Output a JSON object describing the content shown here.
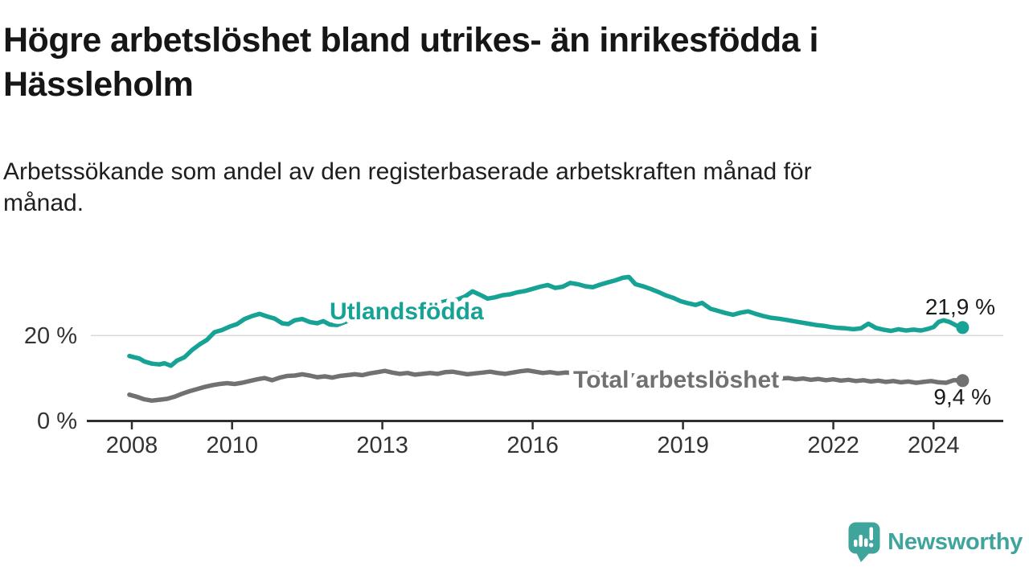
{
  "header": {
    "title_lines": [
      "Högre arbetslöshet bland utrikes- än inrikesfödda i",
      "Hässleholm"
    ],
    "subtitle_lines": [
      "Arbetssökande som andel av den registerbaserade arbetskraften månad för",
      "månad."
    ]
  },
  "chart_data": {
    "type": "line",
    "title": "Högre arbetslöshet bland utrikes- än inrikesfödda i Hässleholm",
    "subtitle": "Arbetssökande som andel av den registerbaserade arbetskraften månad för månad.",
    "unit": "%",
    "grid": "horizontal line at 20% only",
    "legend_position": "inline labels on lines, end value labels at right",
    "x_axis": {
      "range": [
        2007.9,
        2025.3
      ],
      "ticks": [
        {
          "value": 2008,
          "label": "2008"
        },
        {
          "value": 2010,
          "label": "2010"
        },
        {
          "value": 2013,
          "label": "2013"
        },
        {
          "value": 2016,
          "label": "2016"
        },
        {
          "value": 2019,
          "label": "2019"
        },
        {
          "value": 2022,
          "label": "2022"
        },
        {
          "value": 2024,
          "label": "2024"
        }
      ]
    },
    "y_axis": {
      "range": [
        0,
        36
      ],
      "ticks": [
        {
          "value": 0,
          "label": "0 %"
        },
        {
          "value": 20,
          "label": "20 %"
        }
      ]
    },
    "series": [
      {
        "name": "Utlandsfödda",
        "color": "#16a294",
        "end_value": 21.9,
        "end_label": "21,9 %",
        "points": [
          [
            2007.95,
            15.2
          ],
          [
            2008.05,
            14.9
          ],
          [
            2008.15,
            14.6
          ],
          [
            2008.25,
            13.9
          ],
          [
            2008.4,
            13.4
          ],
          [
            2008.55,
            13.2
          ],
          [
            2008.65,
            13.5
          ],
          [
            2008.78,
            12.9
          ],
          [
            2008.9,
            14.1
          ],
          [
            2009.05,
            14.9
          ],
          [
            2009.2,
            16.6
          ],
          [
            2009.35,
            17.9
          ],
          [
            2009.5,
            19.0
          ],
          [
            2009.65,
            20.8
          ],
          [
            2009.8,
            21.3
          ],
          [
            2009.95,
            22.1
          ],
          [
            2010.1,
            22.7
          ],
          [
            2010.25,
            23.9
          ],
          [
            2010.4,
            24.6
          ],
          [
            2010.55,
            25.1
          ],
          [
            2010.7,
            24.5
          ],
          [
            2010.85,
            24.0
          ],
          [
            2011.0,
            22.9
          ],
          [
            2011.12,
            22.7
          ],
          [
            2011.25,
            23.6
          ],
          [
            2011.4,
            23.9
          ],
          [
            2011.55,
            23.2
          ],
          [
            2011.7,
            22.9
          ],
          [
            2011.82,
            23.4
          ],
          [
            2011.95,
            22.6
          ],
          [
            2012.1,
            22.5
          ],
          [
            2012.25,
            23.2
          ],
          [
            2012.4,
            23.8
          ],
          [
            2012.55,
            24.1
          ],
          [
            2012.7,
            23.8
          ],
          [
            2012.85,
            24.0
          ],
          [
            2013.0,
            24.5
          ],
          [
            2013.15,
            25.3
          ],
          [
            2013.3,
            25.1
          ],
          [
            2013.45,
            25.7
          ],
          [
            2013.6,
            26.2
          ],
          [
            2013.75,
            26.4
          ],
          [
            2013.9,
            26.9
          ],
          [
            2014.05,
            27.4
          ],
          [
            2014.2,
            27.9
          ],
          [
            2014.35,
            28.3
          ],
          [
            2014.5,
            28.5
          ],
          [
            2014.65,
            29.2
          ],
          [
            2014.8,
            30.4
          ],
          [
            2014.95,
            29.6
          ],
          [
            2015.1,
            28.7
          ],
          [
            2015.25,
            29.0
          ],
          [
            2015.4,
            29.5
          ],
          [
            2015.55,
            29.7
          ],
          [
            2015.7,
            30.2
          ],
          [
            2015.85,
            30.5
          ],
          [
            2016.0,
            31.0
          ],
          [
            2016.15,
            31.5
          ],
          [
            2016.3,
            31.9
          ],
          [
            2016.45,
            31.2
          ],
          [
            2016.6,
            31.5
          ],
          [
            2016.75,
            32.4
          ],
          [
            2016.9,
            32.1
          ],
          [
            2017.05,
            31.6
          ],
          [
            2017.2,
            31.4
          ],
          [
            2017.35,
            32.0
          ],
          [
            2017.5,
            32.5
          ],
          [
            2017.65,
            33.0
          ],
          [
            2017.8,
            33.6
          ],
          [
            2017.92,
            33.8
          ],
          [
            2018.05,
            32.1
          ],
          [
            2018.2,
            31.6
          ],
          [
            2018.35,
            31.0
          ],
          [
            2018.5,
            30.3
          ],
          [
            2018.65,
            29.5
          ],
          [
            2018.8,
            28.9
          ],
          [
            2018.95,
            28.1
          ],
          [
            2019.1,
            27.6
          ],
          [
            2019.25,
            27.2
          ],
          [
            2019.38,
            27.7
          ],
          [
            2019.55,
            26.3
          ],
          [
            2019.7,
            25.8
          ],
          [
            2019.85,
            25.3
          ],
          [
            2020.0,
            24.9
          ],
          [
            2020.15,
            25.4
          ],
          [
            2020.3,
            25.7
          ],
          [
            2020.45,
            25.1
          ],
          [
            2020.6,
            24.6
          ],
          [
            2020.75,
            24.2
          ],
          [
            2020.9,
            24.0
          ],
          [
            2021.05,
            23.7
          ],
          [
            2021.2,
            23.4
          ],
          [
            2021.35,
            23.1
          ],
          [
            2021.5,
            22.8
          ],
          [
            2021.65,
            22.5
          ],
          [
            2021.8,
            22.3
          ],
          [
            2021.95,
            22.0
          ],
          [
            2022.1,
            21.8
          ],
          [
            2022.25,
            21.7
          ],
          [
            2022.4,
            21.5
          ],
          [
            2022.55,
            21.7
          ],
          [
            2022.7,
            22.8
          ],
          [
            2022.85,
            21.8
          ],
          [
            2023.0,
            21.4
          ],
          [
            2023.15,
            21.1
          ],
          [
            2023.3,
            21.5
          ],
          [
            2023.45,
            21.2
          ],
          [
            2023.6,
            21.4
          ],
          [
            2023.75,
            21.2
          ],
          [
            2023.9,
            21.6
          ],
          [
            2024.0,
            22.0
          ],
          [
            2024.1,
            23.2
          ],
          [
            2024.2,
            23.6
          ],
          [
            2024.32,
            23.2
          ],
          [
            2024.45,
            22.4
          ],
          [
            2024.58,
            21.9
          ]
        ]
      },
      {
        "name": "Total arbetslöshet",
        "color": "#717171",
        "end_value": 9.4,
        "end_label": "9,4 %",
        "points": [
          [
            2007.95,
            6.1
          ],
          [
            2008.1,
            5.6
          ],
          [
            2008.25,
            5.0
          ],
          [
            2008.4,
            4.7
          ],
          [
            2008.55,
            4.9
          ],
          [
            2008.7,
            5.1
          ],
          [
            2008.85,
            5.6
          ],
          [
            2009.0,
            6.3
          ],
          [
            2009.15,
            6.9
          ],
          [
            2009.3,
            7.4
          ],
          [
            2009.45,
            7.9
          ],
          [
            2009.6,
            8.3
          ],
          [
            2009.75,
            8.6
          ],
          [
            2009.9,
            8.8
          ],
          [
            2010.05,
            8.6
          ],
          [
            2010.2,
            8.9
          ],
          [
            2010.35,
            9.3
          ],
          [
            2010.5,
            9.7
          ],
          [
            2010.65,
            10.0
          ],
          [
            2010.8,
            9.5
          ],
          [
            2010.95,
            10.1
          ],
          [
            2011.1,
            10.5
          ],
          [
            2011.25,
            10.6
          ],
          [
            2011.4,
            10.9
          ],
          [
            2011.55,
            10.6
          ],
          [
            2011.7,
            10.2
          ],
          [
            2011.85,
            10.4
          ],
          [
            2012.0,
            10.1
          ],
          [
            2012.15,
            10.5
          ],
          [
            2012.3,
            10.7
          ],
          [
            2012.45,
            10.9
          ],
          [
            2012.6,
            10.7
          ],
          [
            2012.75,
            11.1
          ],
          [
            2012.9,
            11.4
          ],
          [
            2013.05,
            11.7
          ],
          [
            2013.2,
            11.3
          ],
          [
            2013.35,
            11.0
          ],
          [
            2013.5,
            11.2
          ],
          [
            2013.65,
            10.8
          ],
          [
            2013.8,
            11.0
          ],
          [
            2013.95,
            11.2
          ],
          [
            2014.1,
            11.0
          ],
          [
            2014.25,
            11.4
          ],
          [
            2014.4,
            11.5
          ],
          [
            2014.55,
            11.2
          ],
          [
            2014.7,
            10.9
          ],
          [
            2014.85,
            11.1
          ],
          [
            2015.0,
            11.3
          ],
          [
            2015.15,
            11.5
          ],
          [
            2015.3,
            11.2
          ],
          [
            2015.45,
            11.0
          ],
          [
            2015.6,
            11.3
          ],
          [
            2015.75,
            11.6
          ],
          [
            2015.9,
            11.8
          ],
          [
            2016.05,
            11.5
          ],
          [
            2016.2,
            11.2
          ],
          [
            2016.35,
            11.4
          ],
          [
            2016.5,
            11.1
          ],
          [
            2016.65,
            11.3
          ],
          [
            2016.8,
            11.2
          ],
          [
            2017.0,
            11.4
          ],
          [
            2017.3,
            11.2
          ],
          [
            2017.6,
            10.9
          ],
          [
            2017.9,
            10.7
          ],
          [
            2018.2,
            10.5
          ],
          [
            2018.5,
            10.3
          ],
          [
            2018.8,
            10.1
          ],
          [
            2019.1,
            10.0
          ],
          [
            2019.4,
            10.2
          ],
          [
            2019.7,
            9.9
          ],
          [
            2020.0,
            10.1
          ],
          [
            2020.3,
            10.4
          ],
          [
            2020.6,
            10.2
          ],
          [
            2020.9,
            9.9
          ],
          [
            2021.1,
            10.0
          ],
          [
            2021.25,
            9.7
          ],
          [
            2021.4,
            9.9
          ],
          [
            2021.55,
            9.6
          ],
          [
            2021.7,
            9.8
          ],
          [
            2021.85,
            9.5
          ],
          [
            2022.0,
            9.7
          ],
          [
            2022.15,
            9.4
          ],
          [
            2022.3,
            9.6
          ],
          [
            2022.45,
            9.3
          ],
          [
            2022.6,
            9.5
          ],
          [
            2022.75,
            9.2
          ],
          [
            2022.9,
            9.4
          ],
          [
            2023.05,
            9.1
          ],
          [
            2023.2,
            9.3
          ],
          [
            2023.35,
            9.0
          ],
          [
            2023.5,
            9.2
          ],
          [
            2023.65,
            8.9
          ],
          [
            2023.8,
            9.1
          ],
          [
            2023.95,
            9.3
          ],
          [
            2024.1,
            9.0
          ],
          [
            2024.25,
            8.9
          ],
          [
            2024.4,
            9.5
          ],
          [
            2024.58,
            9.4
          ]
        ]
      }
    ]
  },
  "footer": {
    "brand": "Newsworthy",
    "brand_color": "#3fa49c"
  }
}
